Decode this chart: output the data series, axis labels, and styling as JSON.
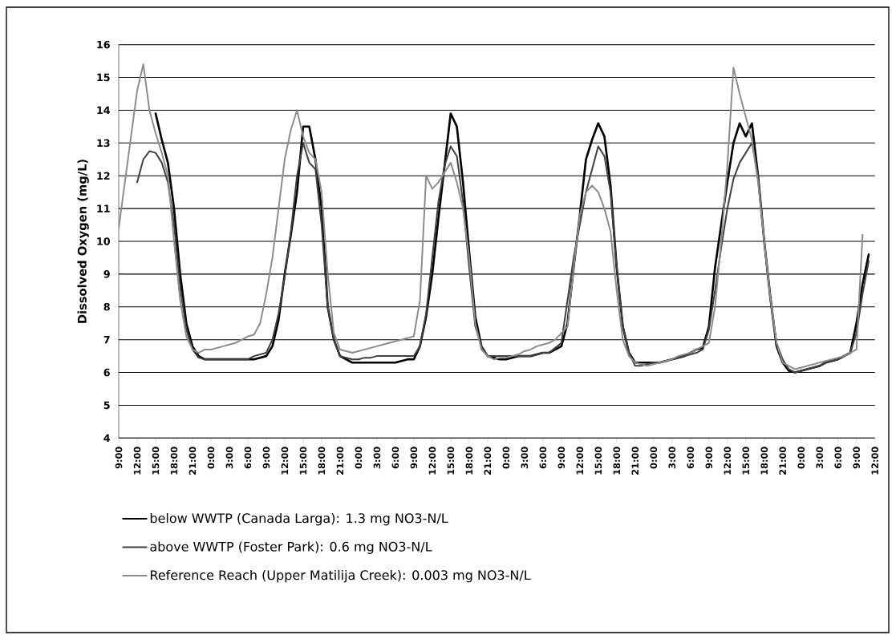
{
  "chart_data": {
    "type": "line",
    "ylabel": "Dissolved Oxygen (mg/L)",
    "ylim": [
      4,
      16
    ],
    "yticks": [
      4,
      5,
      6,
      7,
      8,
      9,
      10,
      11,
      12,
      13,
      14,
      15,
      16
    ],
    "categories": [
      "9:00",
      null,
      null,
      "12:00",
      null,
      null,
      "15:00",
      null,
      null,
      "18:00",
      null,
      null,
      "21:00",
      null,
      null,
      "0:00",
      null,
      null,
      "3:00",
      null,
      null,
      "6:00",
      null,
      null,
      "9:00",
      null,
      null,
      "12:00",
      null,
      null,
      "15:00",
      null,
      null,
      "18:00",
      null,
      null,
      "21:00",
      null,
      null,
      "0:00",
      null,
      null,
      "3:00",
      null,
      null,
      "6:00",
      null,
      null,
      "9:00",
      null,
      null,
      "12:00",
      null,
      null,
      "15:00",
      null,
      null,
      "18:00",
      null,
      null,
      "21:00",
      null,
      null,
      "0:00",
      null,
      null,
      "3:00",
      null,
      null,
      "6:00",
      null,
      null,
      "9:00",
      null,
      null,
      "12:00",
      null,
      null,
      "15:00",
      null,
      null,
      "18:00",
      null,
      null,
      "21:00",
      null,
      null,
      "0:00",
      null,
      null,
      "3:00",
      null,
      null,
      "6:00",
      null,
      null,
      "9:00",
      null,
      null,
      "12:00",
      null,
      null,
      "15:00",
      null,
      null,
      "18:00",
      null,
      null,
      "21:00",
      null,
      null,
      "0:00",
      null,
      null,
      "3:00",
      null,
      null,
      "6:00",
      null,
      null,
      "9:00",
      null,
      null,
      "12:00"
    ],
    "grid": "y",
    "legend": "bottom",
    "marker": "none",
    "line_style": "solid",
    "series": [
      {
        "name": "below WWTP (Canada Larga): 1.3 mg NO3-N/L",
        "color": "#000000",
        "values": [
          null,
          null,
          null,
          null,
          null,
          null,
          13.9,
          13.1,
          12.4,
          11,
          9,
          7.5,
          6.8,
          6.5,
          6.4,
          6.4,
          6.4,
          6.4,
          6.4,
          6.4,
          6.4,
          6.4,
          6.4,
          6.45,
          6.5,
          6.8,
          7.6,
          9,
          10.2,
          11.5,
          13.5,
          13.5,
          12.5,
          11,
          8,
          7,
          6.5,
          6.4,
          6.3,
          6.3,
          6.3,
          6.3,
          6.3,
          6.3,
          6.3,
          6.3,
          6.35,
          6.4,
          6.4,
          6.8,
          7.7,
          9,
          10.7,
          12.3,
          13.9,
          13.5,
          11.8,
          9.7,
          7.7,
          6.8,
          6.5,
          6.45,
          6.4,
          6.4,
          6.45,
          6.5,
          6.5,
          6.5,
          6.55,
          6.6,
          6.6,
          6.7,
          6.8,
          7.5,
          9.2,
          10.8,
          12.5,
          13.1,
          13.6,
          13.2,
          11.7,
          9.2,
          7.4,
          6.6,
          6.3,
          6.3,
          6.3,
          6.3,
          6.3,
          6.35,
          6.4,
          6.45,
          6.5,
          6.6,
          6.7,
          6.75,
          7.4,
          9.2,
          10.5,
          11.8,
          13.0,
          13.6,
          13.2,
          13.6,
          12,
          10,
          8.3,
          6.8,
          6.3,
          6.05,
          6.0,
          6.05,
          6.1,
          6.15,
          6.2,
          6.3,
          6.35,
          6.4,
          6.5,
          6.6,
          7.5,
          8.7,
          9.6,
          null
        ]
      },
      {
        "name": "above WWTP (Foster Park): 0.6 mg NO3-N/L",
        "color": "#404040",
        "values": [
          null,
          null,
          null,
          11.8,
          12.5,
          12.75,
          12.7,
          12.4,
          11.8,
          10.5,
          8.6,
          7.3,
          6.7,
          6.45,
          6.4,
          6.4,
          6.4,
          6.4,
          6.4,
          6.4,
          6.4,
          6.4,
          6.5,
          6.55,
          6.6,
          7.0,
          7.8,
          8.9,
          10.3,
          12.0,
          13.0,
          12.4,
          12.2,
          10.5,
          8,
          7,
          6.5,
          6.45,
          6.4,
          6.4,
          6.45,
          6.45,
          6.5,
          6.5,
          6.5,
          6.5,
          6.5,
          6.5,
          6.5,
          6.8,
          7.8,
          9.5,
          11.2,
          12.3,
          12.9,
          12.6,
          11.2,
          9.2,
          7.4,
          6.8,
          6.5,
          6.5,
          6.5,
          6.5,
          6.5,
          6.5,
          6.5,
          6.5,
          6.55,
          6.6,
          6.6,
          6.75,
          6.9,
          8.2,
          9.5,
          10.5,
          11.5,
          12.2,
          12.9,
          12.6,
          11.5,
          9.2,
          7.4,
          6.6,
          6.2,
          6.2,
          6.25,
          6.3,
          6.3,
          6.35,
          6.4,
          6.45,
          6.5,
          6.55,
          6.6,
          6.7,
          7.3,
          8.5,
          9.8,
          11,
          11.9,
          12.4,
          12.7,
          13.0,
          12,
          10,
          8.2,
          6.9,
          6.4,
          6.1,
          6.0,
          6.05,
          6.1,
          6.15,
          6.2,
          6.3,
          6.35,
          6.4,
          6.5,
          6.6,
          7.2,
          8.4,
          9.4,
          null
        ]
      },
      {
        "name": "Reference Reach (Upper Matilija Creek): 0.003 mg NO3-N/L",
        "color": "#8c8c8c",
        "values": [
          10.4,
          11.8,
          13.2,
          14.6,
          15.4,
          14.0,
          13.3,
          12.7,
          12.0,
          10,
          8.2,
          7.1,
          6.7,
          6.6,
          6.7,
          6.7,
          6.75,
          6.8,
          6.85,
          6.9,
          7.0,
          7.1,
          7.15,
          7.5,
          8.4,
          9.5,
          11,
          12.5,
          13.4,
          14.0,
          13.2,
          12.7,
          12.5,
          11.5,
          9,
          7.2,
          6.7,
          6.65,
          6.6,
          6.65,
          6.7,
          6.75,
          6.8,
          6.85,
          6.9,
          6.95,
          7.0,
          7.05,
          7.1,
          8.2,
          12.0,
          11.6,
          11.8,
          12.1,
          12.4,
          11.8,
          11,
          9.5,
          7.5,
          6.7,
          6.5,
          6.4,
          6.45,
          6.45,
          6.5,
          6.55,
          6.65,
          6.7,
          6.8,
          6.85,
          6.9,
          7.0,
          7.2,
          7.4,
          9.2,
          10.8,
          11.5,
          11.7,
          11.5,
          11.0,
          10.3,
          8.5,
          7,
          6.5,
          6.3,
          6.25,
          6.2,
          6.25,
          6.3,
          6.35,
          6.4,
          6.5,
          6.55,
          6.6,
          6.7,
          6.8,
          6.9,
          8.0,
          10,
          12.3,
          15.3,
          14.5,
          13.8,
          13.1,
          11.8,
          10,
          8.3,
          6.9,
          6.3,
          6.2,
          6.1,
          6.15,
          6.2,
          6.25,
          6.3,
          6.35,
          6.4,
          6.45,
          6.5,
          6.6,
          6.7,
          10.2,
          null,
          null
        ]
      }
    ]
  }
}
